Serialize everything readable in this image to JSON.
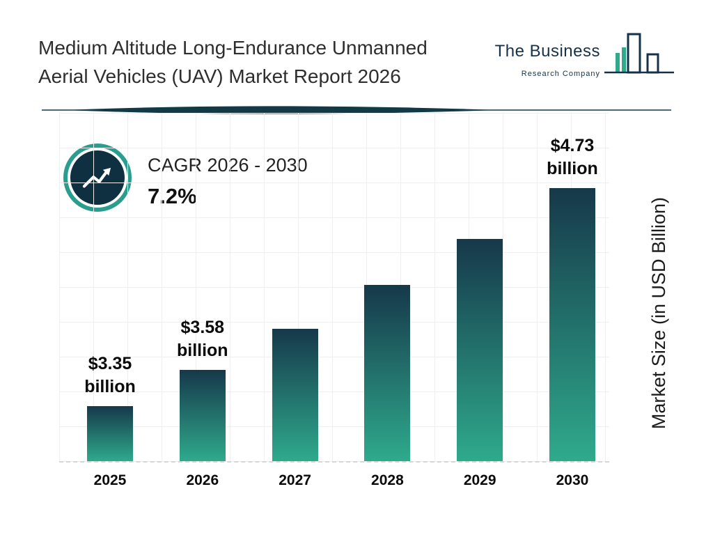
{
  "header": {
    "title": "Medium Altitude Long-Endurance Unmanned Aerial Vehicles (UAV) Market Report 2026",
    "logo": {
      "line1": "The Business",
      "line2": "Research Company"
    }
  },
  "cagr": {
    "label": "CAGR 2026 - 2030",
    "value": "7.2%"
  },
  "chart_data": {
    "type": "bar",
    "title": "Medium Altitude Long-Endurance Unmanned Aerial Vehicles (UAV) Market Report 2026",
    "categories": [
      "2025",
      "2026",
      "2027",
      "2028",
      "2029",
      "2030"
    ],
    "values": [
      3.35,
      3.58,
      3.84,
      4.12,
      4.41,
      4.73
    ],
    "value_labels": [
      [
        "$3.35",
        "billion"
      ],
      [
        "$3.58",
        "billion"
      ],
      null,
      null,
      null,
      [
        "$4.73",
        "billion"
      ]
    ],
    "xlabel": "",
    "ylabel": "Market Size (in USD Billion)",
    "ylim": [
      3.0,
      4.9
    ],
    "grid": true,
    "legend": false,
    "colors": {
      "bar_top": "#16384a",
      "bar_bottom": "#2faa8c",
      "accent_teal": "#2a9d8f",
      "navy": "#0f3040"
    }
  }
}
